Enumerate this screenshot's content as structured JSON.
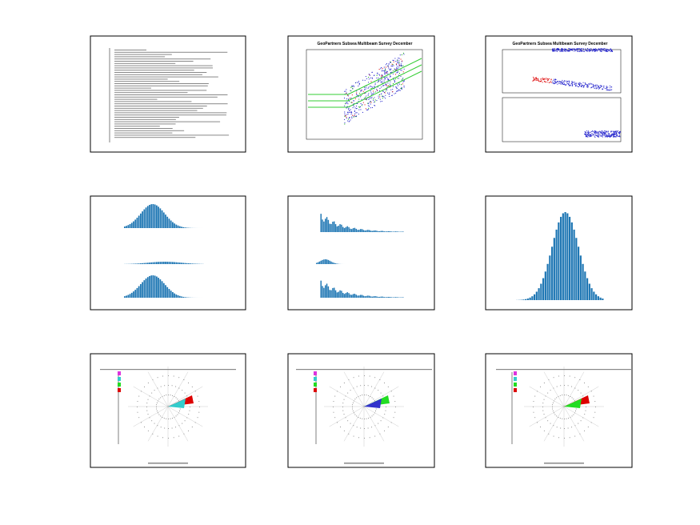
{
  "pages": [
    {
      "title": "GeoPartners Subsea Multibeam Survey December"
    },
    {
      "title": "GeoPartners Subsea Multibeam Survey December"
    }
  ]
}
